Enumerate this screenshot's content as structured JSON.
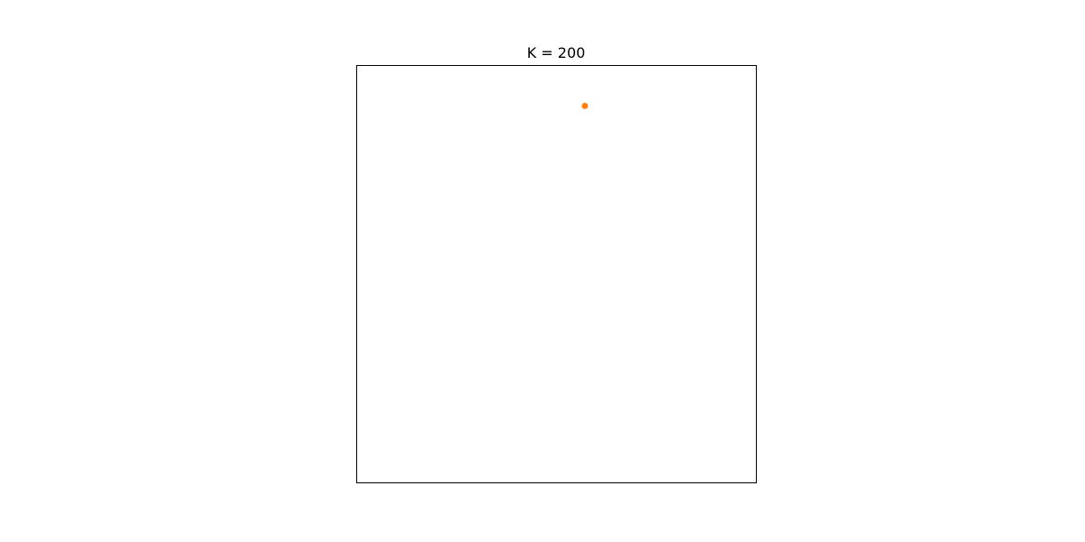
{
  "chart_data": {
    "type": "scatter",
    "title": "K = 200",
    "xlabel": "",
    "ylabel": "",
    "xlim": [
      0,
      1
    ],
    "ylim": [
      0,
      1
    ],
    "grid": false,
    "ticks_visible": false,
    "series": [
      {
        "color": "#ff7f0e",
        "points": [
          {
            "x": 0.571,
            "y": 0.903
          }
        ]
      }
    ]
  }
}
